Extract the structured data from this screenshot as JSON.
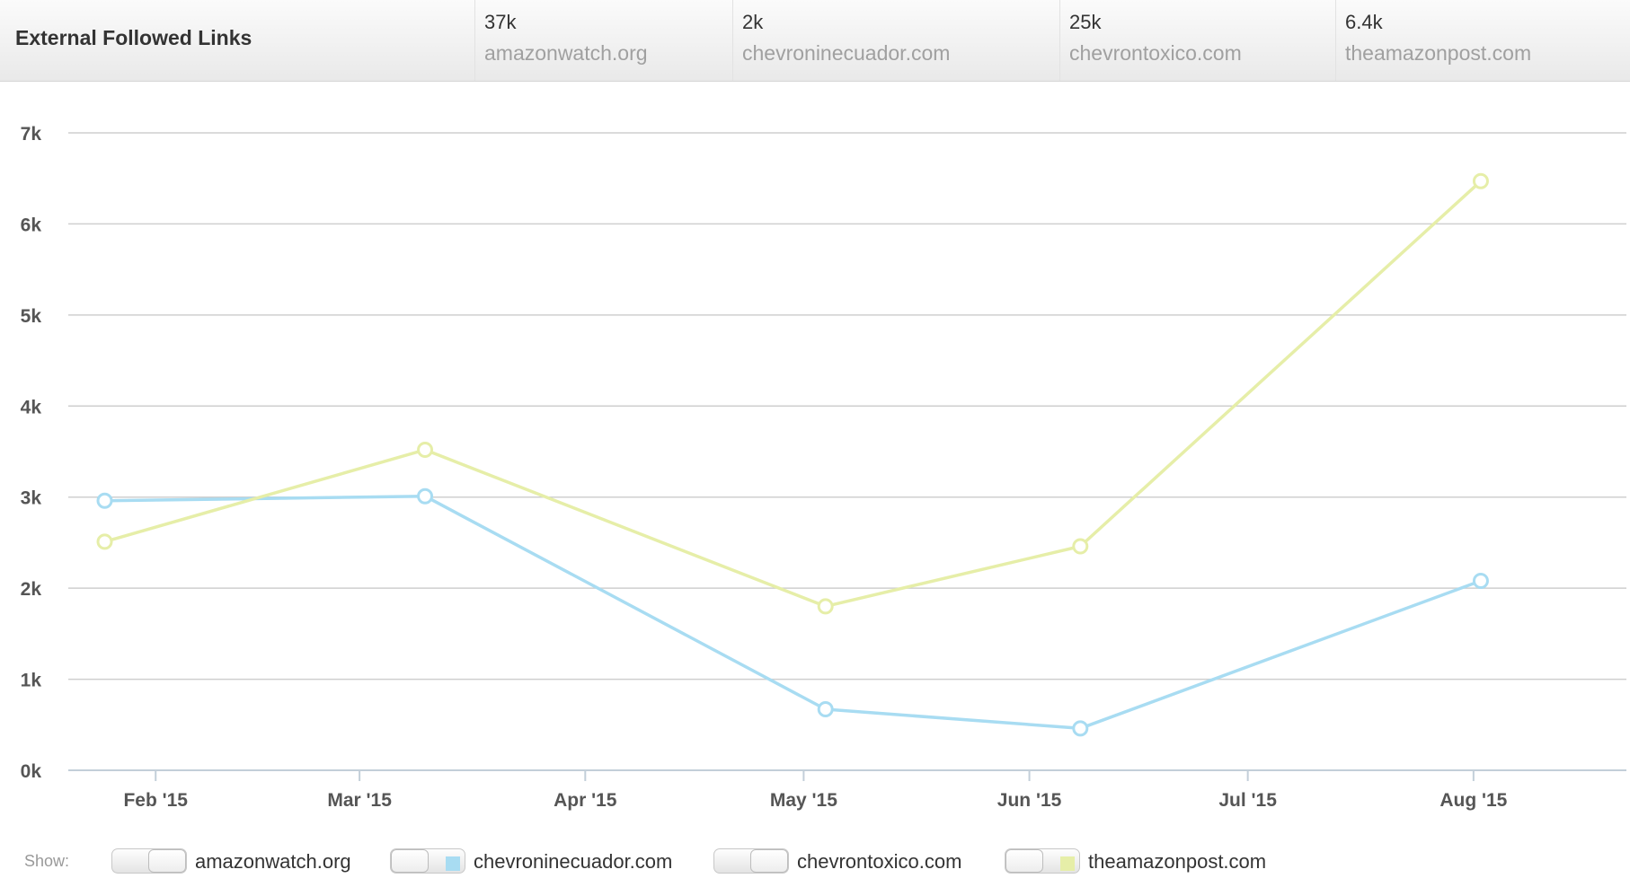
{
  "header": {
    "title": "External Followed Links",
    "stats": [
      {
        "value": "37k",
        "domain": "amazonwatch.org"
      },
      {
        "value": "2k",
        "domain": "chevroninecuador.com"
      },
      {
        "value": "25k",
        "domain": "chevrontoxico.com"
      },
      {
        "value": "6.4k",
        "domain": "theamazonpost.com"
      }
    ]
  },
  "legend": {
    "show_label": "Show:",
    "items": [
      {
        "label": "amazonwatch.org",
        "enabled": false,
        "color": ""
      },
      {
        "label": "chevroninecuador.com",
        "enabled": true,
        "color": "#a8dcf2"
      },
      {
        "label": "chevrontoxico.com",
        "enabled": false,
        "color": ""
      },
      {
        "label": "theamazonpost.com",
        "enabled": true,
        "color": "#e6eea8"
      }
    ]
  },
  "chart_data": {
    "type": "line",
    "ylim": [
      0,
      7000
    ],
    "yticks": [
      {
        "value": 0,
        "label": "0k"
      },
      {
        "value": 1000,
        "label": "1k"
      },
      {
        "value": 2000,
        "label": "2k"
      },
      {
        "value": 3000,
        "label": "3k"
      },
      {
        "value": 4000,
        "label": "4k"
      },
      {
        "value": 5000,
        "label": "5k"
      },
      {
        "value": 6000,
        "label": "6k"
      },
      {
        "value": 7000,
        "label": "7k"
      }
    ],
    "xlim": [
      "2015-01-20",
      "2015-08-22"
    ],
    "xticks": [
      {
        "date": "2015-02-01",
        "label": "Feb '15"
      },
      {
        "date": "2015-03-01",
        "label": "Mar '15"
      },
      {
        "date": "2015-04-01",
        "label": "Apr '15"
      },
      {
        "date": "2015-05-01",
        "label": "May '15"
      },
      {
        "date": "2015-06-01",
        "label": "Jun '15"
      },
      {
        "date": "2015-07-01",
        "label": "Jul '15"
      },
      {
        "date": "2015-08-01",
        "label": "Aug '15"
      }
    ],
    "grid": true,
    "series": [
      {
        "name": "chevroninecuador.com",
        "color": "#a8dcf2",
        "points": [
          {
            "x": "2015-01-25",
            "y": 2960
          },
          {
            "x": "2015-03-10",
            "y": 3010
          },
          {
            "x": "2015-05-04",
            "y": 670
          },
          {
            "x": "2015-06-08",
            "y": 460
          },
          {
            "x": "2015-08-02",
            "y": 2080
          }
        ]
      },
      {
        "name": "theamazonpost.com",
        "color": "#e6eea8",
        "points": [
          {
            "x": "2015-01-25",
            "y": 2510
          },
          {
            "x": "2015-03-10",
            "y": 3520
          },
          {
            "x": "2015-05-04",
            "y": 1800
          },
          {
            "x": "2015-06-08",
            "y": 2460
          },
          {
            "x": "2015-08-02",
            "y": 6470
          }
        ]
      }
    ]
  }
}
